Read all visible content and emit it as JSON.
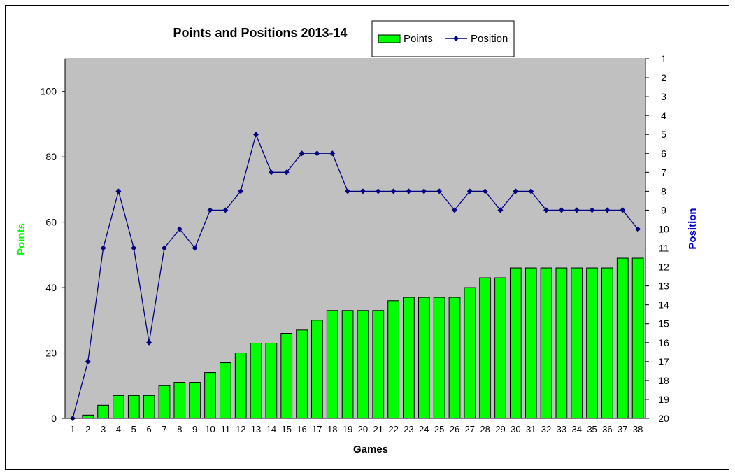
{
  "chart_data": {
    "type": "bar",
    "title": "Points and Positions 2013-14",
    "xlabel": "Games",
    "ylabel": "Points",
    "y2label": "Position",
    "ylim": [
      0,
      110
    ],
    "y_ticks": [
      0,
      20,
      40,
      60,
      80,
      100
    ],
    "y2lim": [
      1,
      20
    ],
    "y2_inverted": true,
    "y2_ticks": [
      1,
      2,
      3,
      4,
      5,
      6,
      7,
      8,
      9,
      10,
      11,
      12,
      13,
      14,
      15,
      16,
      17,
      18,
      19,
      20
    ],
    "categories": [
      "1",
      "2",
      "3",
      "4",
      "5",
      "6",
      "7",
      "8",
      "9",
      "10",
      "11",
      "12",
      "13",
      "14",
      "15",
      "16",
      "17",
      "18",
      "19",
      "20",
      "21",
      "22",
      "23",
      "24",
      "25",
      "26",
      "27",
      "28",
      "29",
      "30",
      "31",
      "32",
      "33",
      "34",
      "35",
      "36",
      "37",
      "38"
    ],
    "series": [
      {
        "name": "Points",
        "type": "bar",
        "axis": "left",
        "color": "#00ff00",
        "values": [
          0,
          1,
          4,
          7,
          7,
          7,
          10,
          11,
          11,
          14,
          17,
          20,
          23,
          23,
          26,
          27,
          30,
          33,
          33,
          33,
          33,
          36,
          37,
          37,
          37,
          37,
          40,
          43,
          43,
          46,
          46,
          46,
          46,
          46,
          46,
          46,
          49,
          49
        ]
      },
      {
        "name": "Position",
        "type": "line",
        "axis": "right",
        "color": "#000080",
        "values": [
          20,
          17,
          11,
          8,
          11,
          16,
          11,
          10,
          11,
          9,
          9,
          8,
          5,
          7,
          7,
          6,
          6,
          6,
          8,
          8,
          8,
          8,
          8,
          8,
          8,
          9,
          8,
          8,
          9,
          8,
          8,
          9,
          9,
          9,
          9,
          9,
          9,
          10
        ]
      }
    ],
    "legend_position": "top-right",
    "plot_background": "#c0c0c0",
    "ylabel_color": "#00ff00",
    "y2label_color": "#0000cc",
    "grid": false
  }
}
